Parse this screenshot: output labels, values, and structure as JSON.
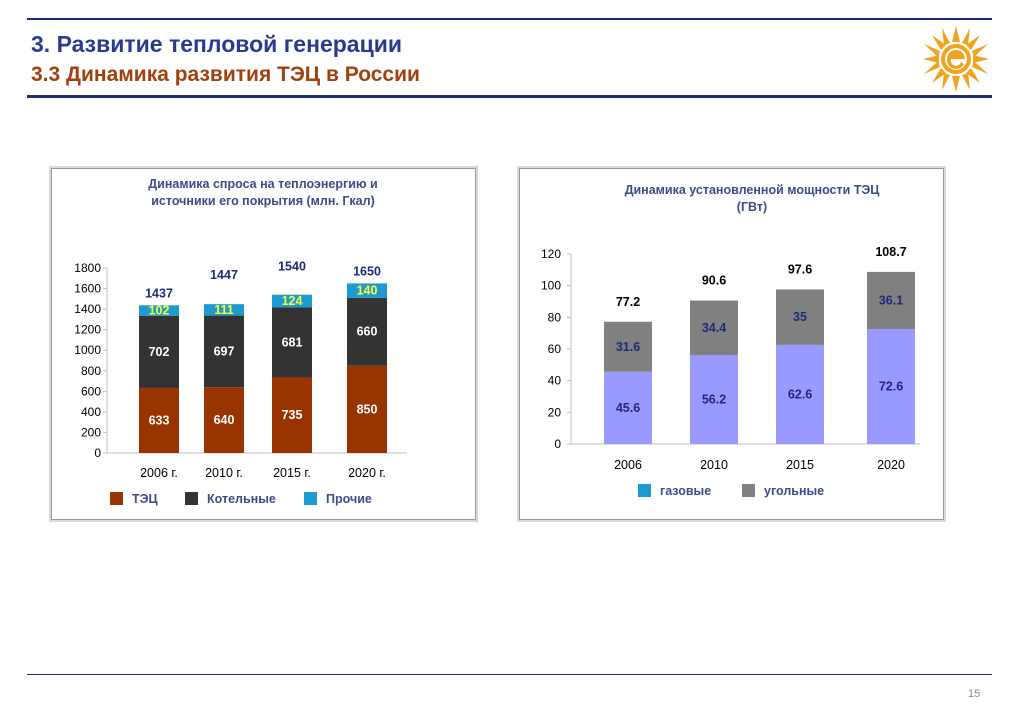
{
  "header": {
    "title": "3. Развитие тепловой генерации",
    "subtitle": "3.3 Динамика развития ТЭЦ в России"
  },
  "footer": {
    "page_number": "15"
  },
  "colors": {
    "title": "#2b3990",
    "subtitle": "#a0410d",
    "rule": "#1f2a7a",
    "logo": "#f0a31e"
  },
  "chart_data": [
    {
      "type": "bar",
      "stacked": true,
      "title_lines": [
        "Динамика спроса на теплоэнергию и",
        "источники его покрытия (млн. Гкал)"
      ],
      "categories": [
        "2006 г.",
        "2010 г.",
        "2015 г.",
        "2020 г."
      ],
      "series": [
        {
          "name": "ТЭЦ",
          "color": "#993300",
          "label_color": "#ffffff",
          "values": [
            633,
            640,
            735,
            850
          ]
        },
        {
          "name": "Котельные",
          "color": "#333333",
          "label_color": "#ffffff",
          "values": [
            702,
            697,
            681,
            660
          ]
        },
        {
          "name": "Прочие",
          "color": "#1b9bcf",
          "label_color": "#ffff33",
          "values": [
            102,
            111,
            124,
            140
          ]
        }
      ],
      "totals": [
        1437,
        1447,
        1540,
        1650
      ],
      "totals_color": "#1f2a7a",
      "ylim": [
        0,
        1800
      ],
      "yticks": [
        0,
        200,
        400,
        600,
        800,
        1000,
        1200,
        1400,
        1600,
        1800
      ],
      "grid": false,
      "legend_position": "bottom"
    },
    {
      "type": "bar",
      "stacked": true,
      "title_lines": [
        "Динамика установленной мощности ТЭЦ",
        "(ГВт)"
      ],
      "categories": [
        "2006",
        "2010",
        "2015",
        "2020"
      ],
      "series": [
        {
          "name": "газовые",
          "color": "#9999ff",
          "label_color": "#1f2a7a",
          "values": [
            45.6,
            56.2,
            62.6,
            72.6
          ]
        },
        {
          "name": "угольные",
          "color": "#808080",
          "label_color": "#1f2a7a",
          "values": [
            31.6,
            34.4,
            35.0,
            36.1
          ]
        }
      ],
      "series_legend_colors": [
        "#1b9bcf",
        "#808080"
      ],
      "totals": [
        "77.2",
        "90.6",
        "97.6",
        "108.7"
      ],
      "totals_color": "#000000",
      "ylim": [
        0,
        120
      ],
      "yticks": [
        0,
        20,
        40,
        60,
        80,
        100,
        120
      ],
      "grid": false,
      "legend_position": "bottom"
    }
  ]
}
